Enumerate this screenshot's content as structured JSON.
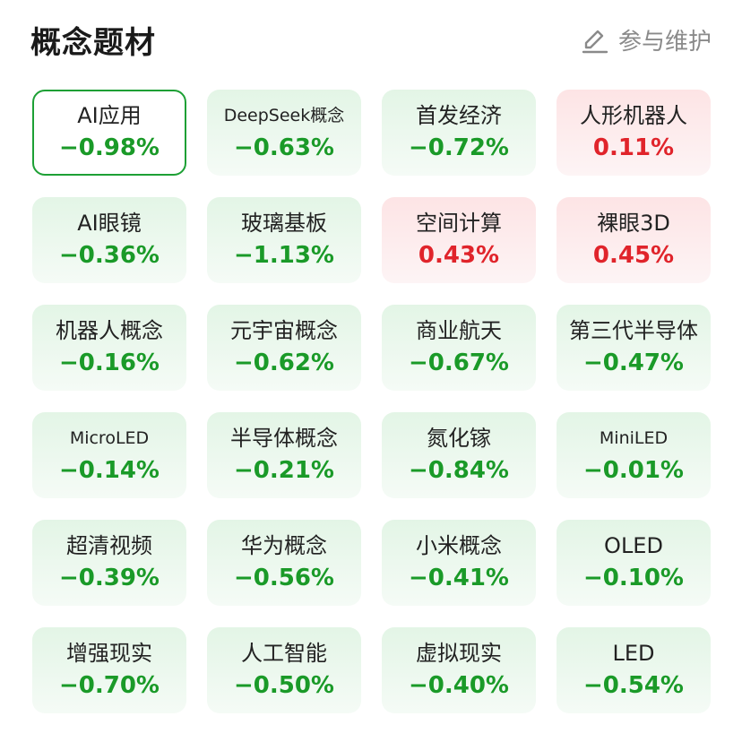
{
  "header": {
    "title": "概念题材",
    "maintain_label": "参与维护",
    "maintain_icon": "edit-icon"
  },
  "colors": {
    "down": "#1a9a28",
    "up": "#e0242b",
    "selected_border": "#1da035"
  },
  "tiles": [
    {
      "name": "AI应用",
      "change": "−0.98%",
      "trend": "down",
      "selected": true
    },
    {
      "name": "DeepSeek概念",
      "change": "−0.63%",
      "trend": "down"
    },
    {
      "name": "首发经济",
      "change": "−0.72%",
      "trend": "down"
    },
    {
      "name": "人形机器人",
      "change": "0.11%",
      "trend": "up"
    },
    {
      "name": "AI眼镜",
      "change": "−0.36%",
      "trend": "down"
    },
    {
      "name": "玻璃基板",
      "change": "−1.13%",
      "trend": "down"
    },
    {
      "name": "空间计算",
      "change": "0.43%",
      "trend": "up"
    },
    {
      "name": "裸眼3D",
      "change": "0.45%",
      "trend": "up"
    },
    {
      "name": "机器人概念",
      "change": "−0.16%",
      "trend": "down"
    },
    {
      "name": "元宇宙概念",
      "change": "−0.62%",
      "trend": "down"
    },
    {
      "name": "商业航天",
      "change": "−0.67%",
      "trend": "down"
    },
    {
      "name": "第三代半导体",
      "change": "−0.47%",
      "trend": "down"
    },
    {
      "name": "MicroLED",
      "change": "−0.14%",
      "trend": "down"
    },
    {
      "name": "半导体概念",
      "change": "−0.21%",
      "trend": "down"
    },
    {
      "name": "氮化镓",
      "change": "−0.84%",
      "trend": "down"
    },
    {
      "name": "MiniLED",
      "change": "−0.01%",
      "trend": "down"
    },
    {
      "name": "超清视频",
      "change": "−0.39%",
      "trend": "down"
    },
    {
      "name": "华为概念",
      "change": "−0.56%",
      "trend": "down"
    },
    {
      "name": "小米概念",
      "change": "−0.41%",
      "trend": "down"
    },
    {
      "name": "OLED",
      "change": "−0.10%",
      "trend": "down"
    },
    {
      "name": "增强现实",
      "change": "−0.70%",
      "trend": "down"
    },
    {
      "name": "人工智能",
      "change": "−0.50%",
      "trend": "down"
    },
    {
      "name": "虚拟现实",
      "change": "−0.40%",
      "trend": "down"
    },
    {
      "name": "LED",
      "change": "−0.54%",
      "trend": "down"
    }
  ]
}
